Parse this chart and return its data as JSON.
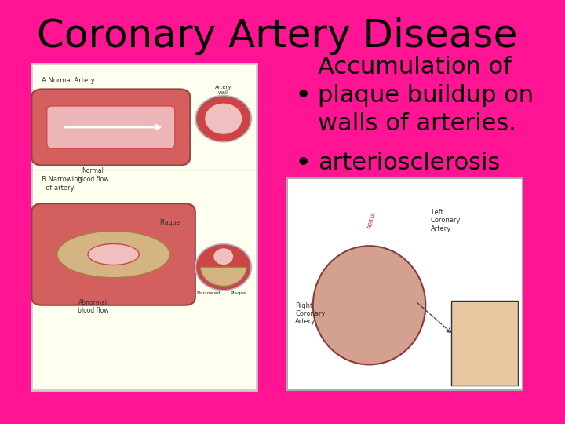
{
  "background_color": "#FF1493",
  "title": "Coronary Artery Disease",
  "title_fontsize": 36,
  "title_color": "#000000",
  "bullet1": "Accumulation of\nplaque buildup on\nwalls of arteries.",
  "bullet2": "arteriosclerosis",
  "bullet_fontsize": 22,
  "bullet_color": "#000000",
  "left_bg": "#FFFFF0",
  "right_bg": "#FFFFFF"
}
